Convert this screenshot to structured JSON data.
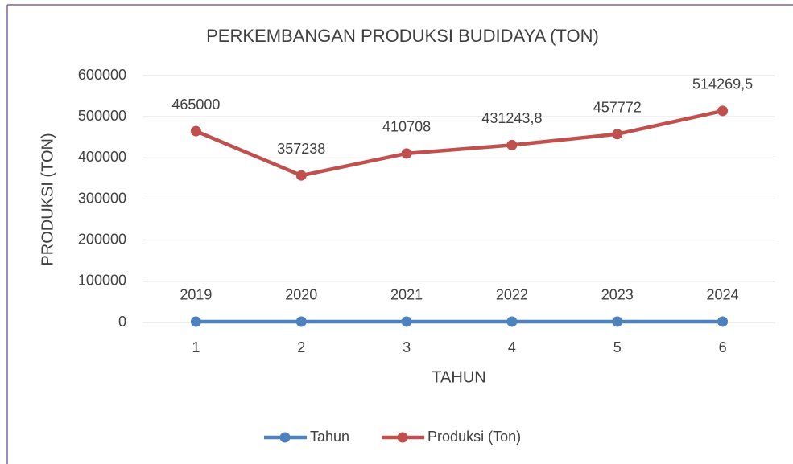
{
  "chart_data": {
    "type": "line",
    "title": "PERKEMBANGAN PRODUKSI BUDIDAYA (TON)",
    "x_label": "TAHUN",
    "y_label": "PRODUKSI (TON)",
    "categories": [
      "1",
      "2",
      "3",
      "4",
      "5",
      "6"
    ],
    "series": [
      {
        "name": "Tahun",
        "color": "#4f81bd",
        "values": [
          2019,
          2020,
          2021,
          2022,
          2023,
          2024
        ]
      },
      {
        "name": "Produksi (Ton)",
        "color": "#c0504d",
        "values": [
          465000,
          357238,
          410708,
          431243.8,
          457772,
          514269.5
        ],
        "value_labels": [
          "465000",
          "357238",
          "410708",
          "431243,8",
          "457772",
          "514269,5"
        ]
      }
    ],
    "ylim": [
      0,
      600000
    ],
    "yticks": [
      0,
      100000,
      200000,
      300000,
      400000,
      500000,
      600000
    ],
    "grid": true,
    "legend": "bottom"
  }
}
